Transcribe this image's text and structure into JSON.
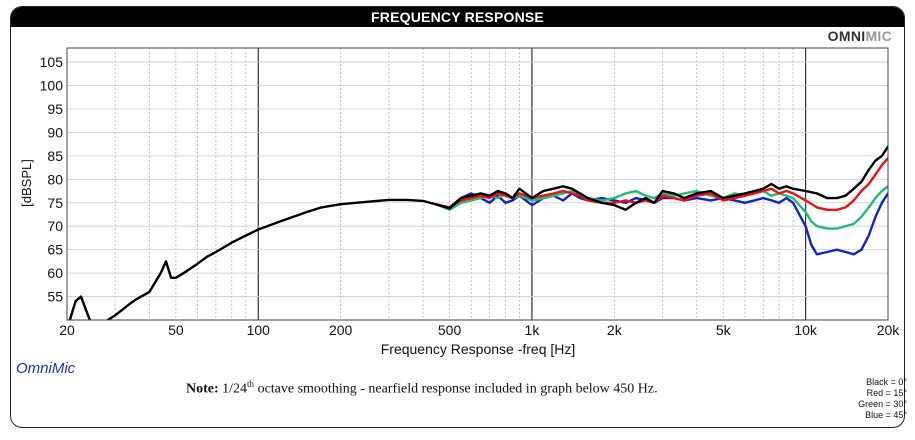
{
  "header": {
    "title": "FREQUENCY RESPONSE"
  },
  "brand": {
    "part1": "OMNI",
    "part2": "MIC"
  },
  "app_name": "OmniMic",
  "note": {
    "label": "Note:",
    "pre": " 1/24",
    "sup": "th",
    "post": " octave smoothing - nearfield response included in graph below 450 Hz."
  },
  "legend": [
    "Black = 0°",
    "Red = 15°",
    "Green = 30°",
    "Blue = 45°"
  ],
  "chart_data": {
    "type": "line",
    "title": "FREQUENCY RESPONSE",
    "xlabel": "Frequency Response -freq [Hz]",
    "ylabel": "[dBSPL]",
    "x_scale": "log",
    "xlim": [
      20,
      20000
    ],
    "ylim": [
      50,
      108
    ],
    "x_ticks": [
      20,
      50,
      100,
      200,
      500,
      1000,
      2000,
      5000,
      10000,
      20000
    ],
    "x_tick_labels": [
      "20",
      "50",
      "100",
      "200",
      "500",
      "1k",
      "2k",
      "5k",
      "10k",
      "20k"
    ],
    "y_ticks": [
      55,
      60,
      65,
      70,
      75,
      80,
      85,
      90,
      95,
      100,
      105
    ],
    "grid": true,
    "series": [
      {
        "name": "Black = 0°",
        "color": "#000000",
        "x": [
          20,
          21.5,
          22.5,
          23.5,
          25,
          30,
          34,
          36,
          40,
          44,
          46,
          48,
          50,
          55,
          60,
          65,
          70,
          80,
          90,
          100,
          120,
          150,
          170,
          200,
          250,
          300,
          350,
          400,
          450,
          500,
          550,
          600,
          650,
          700,
          750,
          800,
          850,
          900,
          1000,
          1100,
          1200,
          1300,
          1400,
          1500,
          1600,
          1800,
          2000,
          2200,
          2400,
          2600,
          2800,
          3000,
          3300,
          3600,
          4000,
          4500,
          5000,
          5500,
          6000,
          6500,
          7000,
          7500,
          8000,
          8500,
          9000,
          10000,
          11000,
          12000,
          13000,
          14000,
          15000,
          16000,
          17000,
          18000,
          19000,
          20000
        ],
        "y": [
          48,
          54,
          55,
          52,
          48,
          51,
          53.5,
          54.5,
          56,
          60,
          62.5,
          59,
          59,
          60.5,
          62,
          63.5,
          64.5,
          66.5,
          68,
          69.3,
          71,
          73,
          74,
          74.7,
          75.2,
          75.6,
          75.6,
          75.4,
          74.6,
          73.8,
          76,
          76.5,
          77,
          76.5,
          77.5,
          77,
          76,
          78,
          76,
          77.5,
          78,
          78.5,
          78,
          77,
          76,
          75,
          74.5,
          73.5,
          75,
          76,
          75,
          77.5,
          77,
          76,
          77,
          77.5,
          76,
          76.5,
          77,
          77.5,
          78,
          79,
          78,
          78.5,
          78,
          77.5,
          77,
          76,
          76,
          76.5,
          78,
          79.5,
          82,
          84,
          85,
          87
        ]
      },
      {
        "name": "Red = 15°",
        "color": "#ee1111",
        "x": [
          450,
          500,
          550,
          600,
          650,
          700,
          750,
          800,
          850,
          900,
          1000,
          1100,
          1200,
          1300,
          1400,
          1500,
          1600,
          1800,
          2000,
          2200,
          2400,
          2600,
          2800,
          3000,
          3300,
          3600,
          4000,
          4500,
          5000,
          5500,
          6000,
          6500,
          7000,
          7500,
          8000,
          8500,
          9000,
          10000,
          11000,
          12000,
          13000,
          14000,
          15000,
          16000,
          17000,
          18000,
          19000,
          20000
        ],
        "y": [
          74.6,
          74,
          75.5,
          76,
          76.5,
          76,
          77,
          76.5,
          76,
          77,
          76,
          76.5,
          77,
          77.5,
          77,
          76.5,
          75.5,
          75,
          75,
          75.5,
          75,
          75.5,
          75,
          76.5,
          76,
          75.5,
          76.5,
          77,
          75.5,
          76,
          76.5,
          77,
          77.5,
          78,
          77,
          77.5,
          77,
          75.5,
          74,
          73.5,
          73.5,
          74,
          75.5,
          77.5,
          79,
          81,
          83,
          84.5
        ]
      },
      {
        "name": "Green = 30°",
        "color": "#22bb77",
        "x": [
          450,
          500,
          550,
          600,
          650,
          700,
          750,
          800,
          850,
          900,
          1000,
          1100,
          1200,
          1300,
          1400,
          1500,
          1600,
          1800,
          2000,
          2200,
          2400,
          2600,
          2800,
          3000,
          3300,
          3600,
          4000,
          4500,
          5000,
          5500,
          6000,
          6500,
          7000,
          7500,
          8000,
          8500,
          9000,
          10000,
          10500,
          11000,
          12000,
          13000,
          14000,
          15000,
          16000,
          17000,
          18000,
          19000,
          20000
        ],
        "y": [
          74.6,
          73.5,
          75,
          75.5,
          76,
          76.5,
          76,
          77,
          76,
          76.5,
          75.5,
          76,
          76.5,
          77,
          77.5,
          76.5,
          76,
          75.5,
          76,
          77,
          77.5,
          76.5,
          76,
          77,
          76.5,
          77,
          77.5,
          76.5,
          76,
          77,
          76.5,
          77,
          77.5,
          76.5,
          77,
          76.5,
          76,
          73,
          71,
          70,
          69.5,
          69.5,
          70,
          70.5,
          72,
          74,
          76,
          77.5,
          78.5
        ]
      },
      {
        "name": "Blue = 45°",
        "color": "#1122cc",
        "x": [
          450,
          500,
          550,
          600,
          650,
          700,
          750,
          800,
          850,
          900,
          1000,
          1100,
          1200,
          1300,
          1400,
          1500,
          1600,
          1800,
          2000,
          2200,
          2400,
          2600,
          2800,
          3000,
          3300,
          3600,
          4000,
          4500,
          5000,
          5500,
          6000,
          6500,
          7000,
          7500,
          8000,
          8500,
          9000,
          10000,
          10500,
          11000,
          12000,
          13000,
          14000,
          15000,
          16000,
          17000,
          18000,
          19000,
          20000
        ],
        "y": [
          74.6,
          74,
          76,
          77,
          76,
          75,
          76.5,
          75,
          75.5,
          76.5,
          74.5,
          76,
          76.5,
          75.5,
          77,
          76,
          75.5,
          76,
          75.5,
          75,
          76,
          75.5,
          75,
          76,
          76,
          75.5,
          76,
          75.5,
          76,
          75.5,
          75,
          75.5,
          76,
          75.5,
          75,
          76,
          75,
          70,
          66,
          64,
          64.5,
          65,
          64.5,
          64,
          65,
          68,
          72,
          75,
          77
        ]
      }
    ]
  }
}
